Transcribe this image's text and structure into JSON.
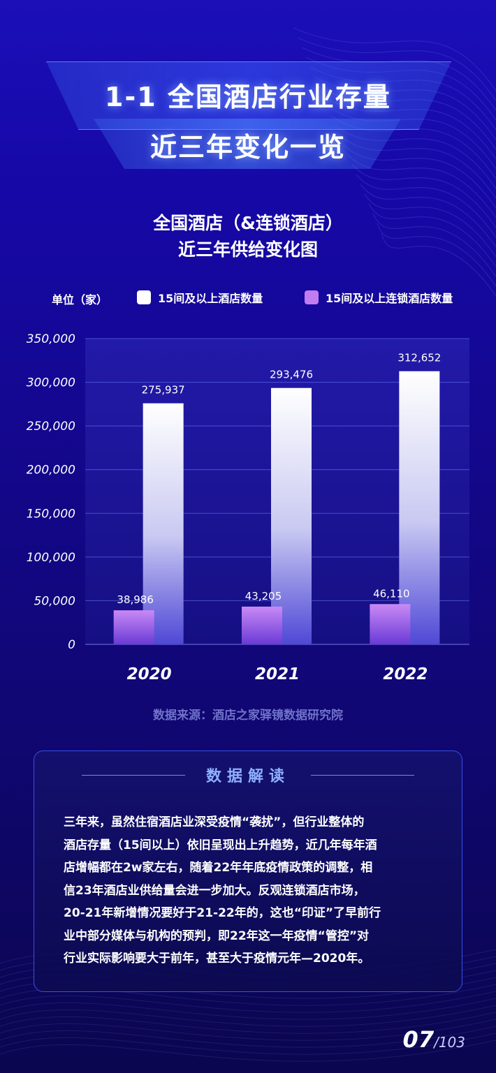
{
  "header": {
    "title_line1": "1-1 全国酒店行业存量",
    "title_line2": "近三年变化一览"
  },
  "chart_data": {
    "type": "bar",
    "title": "全国酒店（&连锁酒店）",
    "subtitle": "近三年供给变化图",
    "unit_label": "单位（家）",
    "categories": [
      "2020",
      "2021",
      "2022"
    ],
    "series": [
      {
        "name": "15间及以上酒店数量",
        "values": [
          275937,
          293476,
          312652
        ],
        "labels": [
          "275,937",
          "293,476",
          "312,652"
        ],
        "color": "#ffffff"
      },
      {
        "name": "15间及以上连锁酒店数量",
        "values": [
          38986,
          43205,
          46110
        ],
        "labels": [
          "38,986",
          "43,205",
          "46,110"
        ],
        "color": "#c17cf2"
      }
    ],
    "y_ticks": [
      "0",
      "50,000",
      "100,000",
      "150,000",
      "200,000",
      "250,000",
      "300,000",
      "350,000"
    ],
    "ylim": [
      0,
      350000
    ],
    "grid": true,
    "legend_position": "top"
  },
  "source": "数据来源：酒店之家驿镜数据研究院",
  "interpretation": {
    "heading": "数据解读",
    "lines": [
      "三年来，虽然住宿酒店业深受疫情“袭扰”，但行业整体的",
      "酒店存量（15间以上）依旧呈现出上升趋势，近几年每年酒",
      "店增幅都在2w家左右，随着22年年底疫情政策的调整，相",
      "信23年酒店业供给量会进一步加大。反观连锁酒店市场，",
      "20-21年新增情况要好于21-22年的，这也“印证”了早前行",
      "业中部分媒体与机构的预判，即22年这一年疫情“管控”对",
      "行业实际影响要大于前年，甚至大于疫情元年—2020年。"
    ]
  },
  "page": {
    "current": "07",
    "total": "/103"
  }
}
